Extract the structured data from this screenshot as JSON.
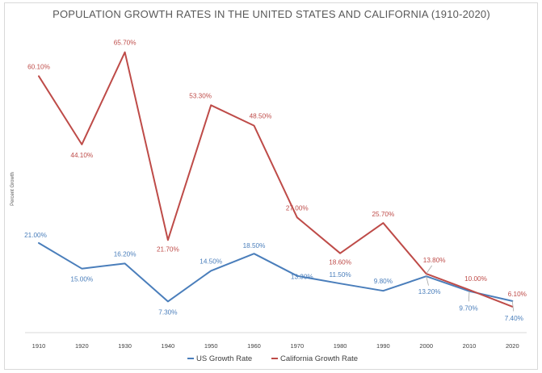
{
  "chart_data": {
    "type": "line",
    "title": "POPULATION GROWTH RATES IN THE UNITED STATES AND CALIFORNIA (1910-2020)",
    "xlabel": "",
    "ylabel": "Percent Growth",
    "categories": [
      "1910",
      "1920",
      "1930",
      "1940",
      "1950",
      "1960",
      "1970",
      "1980",
      "1990",
      "2000",
      "2010",
      "2020"
    ],
    "ylim": [
      0,
      70
    ],
    "grid": false,
    "legend_position": "bottom",
    "series": [
      {
        "name": "US Growth Rate",
        "color": "#4a7ebb",
        "values": [
          21.0,
          15.0,
          16.2,
          7.3,
          14.5,
          18.5,
          13.3,
          11.5,
          9.8,
          13.2,
          9.7,
          7.4
        ],
        "labels": [
          "21.00%",
          "15.00%",
          "16.20%",
          "7.30%",
          "14.50%",
          "18.50%",
          "13.30%",
          "11.50%",
          "9.80%",
          "13.20%",
          "9.70%",
          "7.40%"
        ]
      },
      {
        "name": "California Growth Rate",
        "color": "#be4b48",
        "values": [
          60.1,
          44.1,
          65.7,
          21.7,
          53.3,
          48.5,
          27.0,
          18.6,
          25.7,
          13.8,
          10.0,
          6.1
        ],
        "labels": [
          "60.10%",
          "44.10%",
          "65.70%",
          "21.70%",
          "53.30%",
          "48.50%",
          "27.00%",
          "18.60%",
          "25.70%",
          "13.80%",
          "10.00%",
          "6.10%"
        ]
      }
    ]
  }
}
